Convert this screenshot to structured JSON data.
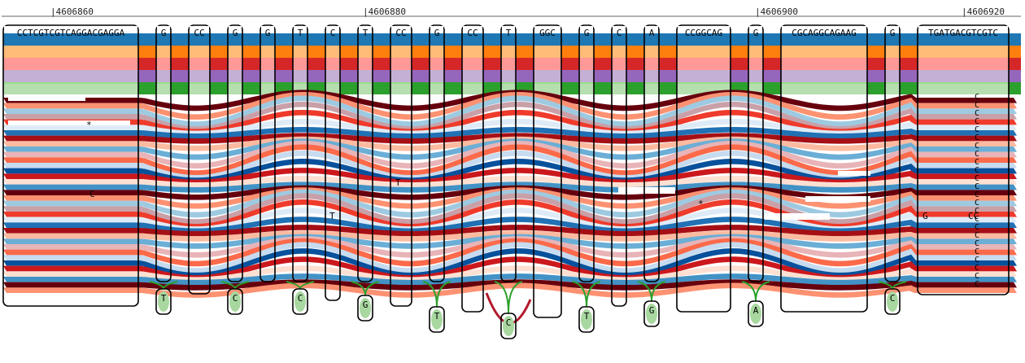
{
  "ruler": {
    "ticks": [
      {
        "label": "|4606860"
      },
      {
        "label": "|4606880"
      },
      {
        "label": "|4606900"
      },
      {
        "label": "|4606920"
      }
    ]
  },
  "track_colors": [
    "#1f77b4",
    "#ffbb78",
    "#ff7f0e",
    "#ff9896",
    "#d62728",
    "#c5b0d5",
    "#9467bd",
    "#98df8a",
    "#2ca02c"
  ],
  "ribbon_palette": [
    "#67000d",
    "#a50f15",
    "#cb181d",
    "#ef3b2c",
    "#fb6a4a",
    "#fc9272",
    "#fcbba1",
    "#fee0d2",
    "#deebf7",
    "#c6dbef",
    "#9ecae1",
    "#6baed6",
    "#4292c6",
    "#2171b5",
    "#08519c",
    "#c9a0a8",
    "#e8b4b8"
  ],
  "nodes": [
    {
      "seq": "CCTCGTCGTCAGGACGAGGA"
    },
    {
      "seq": "G"
    },
    {
      "seq": "CC"
    },
    {
      "seq": "G"
    },
    {
      "seq": "G"
    },
    {
      "seq": "T"
    },
    {
      "seq": "C"
    },
    {
      "seq": "T"
    },
    {
      "seq": "CC"
    },
    {
      "seq": "G"
    },
    {
      "seq": "CC"
    },
    {
      "seq": "T"
    },
    {
      "seq": "GGC"
    },
    {
      "seq": "G"
    },
    {
      "seq": "C"
    },
    {
      "seq": "A"
    },
    {
      "seq": "CCGGCAG"
    },
    {
      "seq": "G"
    },
    {
      "seq": "CGCAGGCAGAAG"
    },
    {
      "seq": "G"
    },
    {
      "seq": "TGATGACGTCGTC"
    }
  ],
  "variant_nodes": [
    {
      "seq": "T"
    },
    {
      "seq": "C"
    },
    {
      "seq": "C"
    },
    {
      "seq": "G"
    },
    {
      "seq": "T"
    },
    {
      "seq": "C"
    },
    {
      "seq": "T"
    },
    {
      "seq": "G"
    },
    {
      "seq": "A"
    },
    {
      "seq": "C"
    }
  ],
  "annotations": [
    {
      "text": "*"
    },
    {
      "text": "C"
    },
    {
      "text": "T"
    },
    {
      "text": "T"
    },
    {
      "text": "*"
    },
    {
      "text": "G"
    },
    {
      "text": "CC"
    }
  ],
  "c_column": {
    "text": "C"
  }
}
